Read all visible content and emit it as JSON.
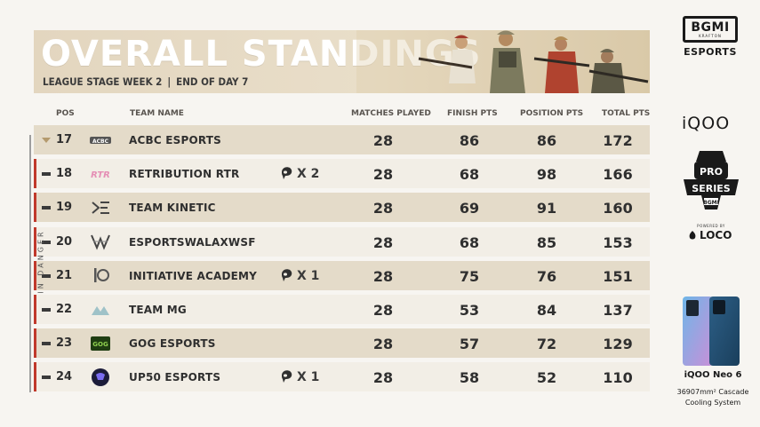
{
  "header": {
    "title": "OVERALL STANDINGS",
    "stage": "LEAGUE STAGE WEEK 2",
    "separator": "|",
    "day": "END OF DAY 7"
  },
  "columns": {
    "pos": "POS",
    "team_name": "TEAM NAME",
    "matches_played": "MATCHES PLAYED",
    "finish_pts": "FINISH PTS",
    "position_pts": "POSITION PTS",
    "total_pts": "TOTAL PTS"
  },
  "rows": [
    {
      "pos": "17",
      "trend": "down",
      "team": "ACBC ESPORTS",
      "logo": "acbc-logo",
      "chicken": "",
      "mp": "28",
      "fp": "86",
      "pp": "86",
      "tp": "172"
    },
    {
      "pos": "18",
      "trend": "same",
      "team": "RETRIBUTION RTR",
      "logo": "rtr-logo",
      "chicken": "X 2",
      "mp": "28",
      "fp": "68",
      "pp": "98",
      "tp": "166"
    },
    {
      "pos": "19",
      "trend": "same",
      "team": "TEAM KINETIC",
      "logo": "kinetic-logo",
      "chicken": "",
      "mp": "28",
      "fp": "69",
      "pp": "91",
      "tp": "160"
    },
    {
      "pos": "20",
      "trend": "same",
      "team": "ESPORTSWALAXWSF",
      "logo": "wsf-logo",
      "chicken": "",
      "mp": "28",
      "fp": "68",
      "pp": "85",
      "tp": "153"
    },
    {
      "pos": "21",
      "trend": "same",
      "team": "INITIATIVE ACADEMY",
      "logo": "initiative-logo",
      "chicken": "X 1",
      "mp": "28",
      "fp": "75",
      "pp": "76",
      "tp": "151"
    },
    {
      "pos": "22",
      "trend": "same",
      "team": "TEAM MG",
      "logo": "mg-logo",
      "chicken": "",
      "mp": "28",
      "fp": "53",
      "pp": "84",
      "tp": "137"
    },
    {
      "pos": "23",
      "trend": "same",
      "team": "GOG ESPORTS",
      "logo": "gog-logo",
      "chicken": "",
      "mp": "28",
      "fp": "57",
      "pp": "72",
      "tp": "129"
    },
    {
      "pos": "24",
      "trend": "same",
      "team": "UP50 ESPORTS",
      "logo": "up50-logo",
      "chicken": "X 1",
      "mp": "28",
      "fp": "58",
      "pp": "52",
      "tp": "110"
    }
  ],
  "danger_label": "IN DANGER",
  "sponsors": {
    "bgmi_main": "BGMI",
    "bgmi_sub": "KRAFTON",
    "bgmi_esports": "ESPORTS",
    "iqoo": "iQOO",
    "powered_by": "POWERED BY",
    "loco": "LOCO",
    "phone_name": "iQOO Neo 6",
    "phone_desc_1": "36907mm² Cascade",
    "phone_desc_2": "Cooling System"
  },
  "colors": {
    "danger_red": "#c0392b",
    "row_dark": "#e4dbc9",
    "row_light": "#f2eee6",
    "banner": "#e3d6bf"
  }
}
